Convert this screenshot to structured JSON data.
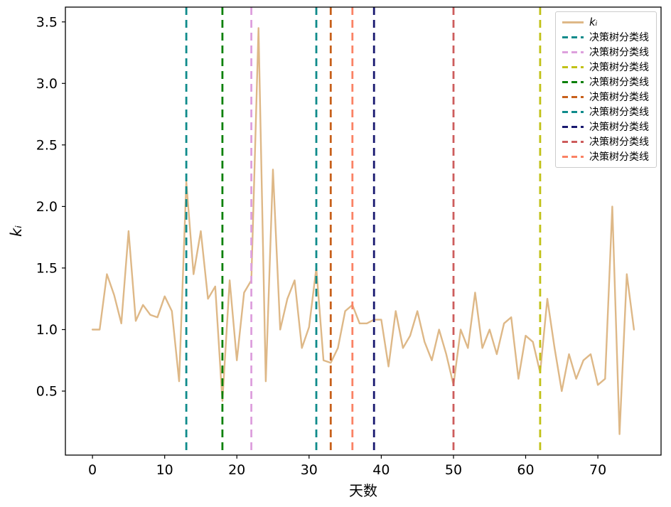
{
  "chart_data": {
    "type": "line",
    "title": "",
    "xlabel": "天数",
    "ylabel": "k_i",
    "ylabel_display": "kᵢ",
    "xlim": [
      -3.75,
      78.75
    ],
    "ylim": [
      -0.02,
      3.62
    ],
    "x_ticks": [
      0,
      10,
      20,
      30,
      40,
      50,
      60,
      70
    ],
    "y_ticks": [
      0.5,
      1.0,
      1.5,
      2.0,
      2.5,
      3.0,
      3.5
    ],
    "grid": false,
    "series": [
      {
        "name": "kᵢ",
        "color": "#deb887",
        "style": "solid",
        "x": [
          0,
          1,
          2,
          3,
          4,
          5,
          6,
          7,
          8,
          9,
          10,
          11,
          12,
          13,
          14,
          15,
          16,
          17,
          18,
          19,
          20,
          21,
          22,
          23,
          24,
          25,
          26,
          27,
          28,
          29,
          30,
          31,
          32,
          33,
          34,
          35,
          36,
          37,
          38,
          39,
          40,
          41,
          42,
          43,
          44,
          45,
          46,
          47,
          48,
          49,
          50,
          51,
          52,
          53,
          54,
          55,
          56,
          57,
          58,
          59,
          60,
          61,
          62,
          63,
          64,
          65,
          66,
          67,
          68,
          69,
          70,
          71,
          72,
          73,
          74,
          75
        ],
        "y": [
          1.0,
          1.0,
          1.45,
          1.28,
          1.05,
          1.8,
          1.07,
          1.2,
          1.12,
          1.1,
          1.27,
          1.15,
          0.58,
          2.2,
          1.45,
          1.8,
          1.25,
          1.35,
          0.42,
          1.4,
          0.75,
          1.3,
          1.4,
          3.45,
          0.58,
          2.3,
          1.0,
          1.25,
          1.4,
          0.85,
          1.02,
          1.5,
          0.75,
          0.73,
          0.85,
          1.15,
          1.2,
          1.05,
          1.05,
          1.08,
          1.08,
          0.7,
          1.15,
          0.85,
          0.95,
          1.15,
          0.9,
          0.75,
          1.0,
          0.8,
          0.55,
          1.0,
          0.85,
          1.3,
          0.85,
          1.0,
          0.8,
          1.05,
          1.1,
          0.6,
          0.95,
          0.9,
          0.65,
          1.25,
          0.85,
          0.5,
          0.8,
          0.6,
          0.75,
          0.8,
          0.55,
          0.6,
          2.0,
          0.15,
          1.45,
          1.0
        ]
      }
    ],
    "vertical_lines": [
      {
        "x": 13,
        "color": "#0f8b8b",
        "label": "决策树分类线"
      },
      {
        "x": 22,
        "color": "#dda0dd",
        "label": "决策树分类线"
      },
      {
        "x": 62,
        "color": "#c2c217",
        "label": "决策树分类线"
      },
      {
        "x": 18,
        "color": "#0a8008",
        "label": "决策树分类线"
      },
      {
        "x": 33,
        "color": "#c8611c",
        "label": "决策树分类线"
      },
      {
        "x": 31,
        "color": "#0f8b8b",
        "label": "决策树分类线"
      },
      {
        "x": 39,
        "color": "#191970",
        "label": "决策树分类线"
      },
      {
        "x": 50,
        "color": "#cd5c5c",
        "label": "决策树分类线"
      },
      {
        "x": 36,
        "color": "#fa8265",
        "label": "决策树分类线"
      }
    ],
    "legend": {
      "position": "upper right",
      "entries": [
        {
          "label": "kᵢ",
          "color": "#deb887",
          "dash": false,
          "italic": true
        },
        {
          "label": "决策树分类线",
          "color": "#0f8b8b",
          "dash": true
        },
        {
          "label": "决策树分类线",
          "color": "#dda0dd",
          "dash": true
        },
        {
          "label": "决策树分类线",
          "color": "#c2c217",
          "dash": true
        },
        {
          "label": "决策树分类线",
          "color": "#0a8008",
          "dash": true
        },
        {
          "label": "决策树分类线",
          "color": "#c8611c",
          "dash": true
        },
        {
          "label": "决策树分类线",
          "color": "#0f8b8b",
          "dash": true
        },
        {
          "label": "决策树分类线",
          "color": "#191970",
          "dash": true
        },
        {
          "label": "决策树分类线",
          "color": "#cd5c5c",
          "dash": true
        },
        {
          "label": "决策树分类线",
          "color": "#fa8265",
          "dash": true
        }
      ]
    }
  }
}
